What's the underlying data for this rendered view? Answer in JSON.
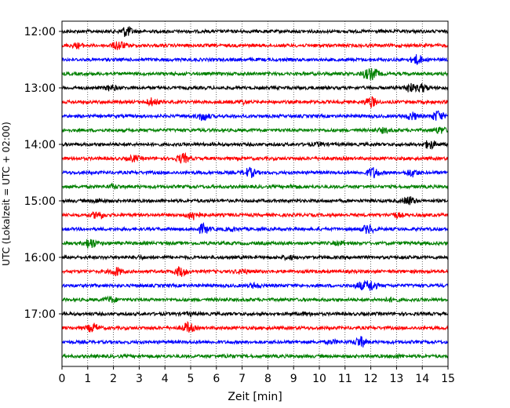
{
  "chart_data": {
    "type": "line",
    "title": "",
    "xlabel": "Zeit  [min]",
    "ylabel": "UTC (Lokalzeit = UTC + 02:00)",
    "xlim": [
      0,
      15
    ],
    "x_ticks": [
      0,
      1,
      2,
      3,
      4,
      5,
      6,
      7,
      8,
      9,
      10,
      11,
      12,
      13,
      14,
      15
    ],
    "y_tick_labels": [
      "12:00",
      "13:00",
      "14:00",
      "15:00",
      "16:00",
      "17:00"
    ],
    "trace_count": 24,
    "traces_per_tick": 4,
    "colors": [
      "#000000",
      "#ff0000",
      "#0000ff",
      "#008000"
    ],
    "grid": "vertical dotted at each minute",
    "bursts": [
      [
        [
          2.5,
          1.0
        ]
      ],
      [
        [
          2.2,
          0.9
        ],
        [
          0.6,
          0.4
        ]
      ],
      [
        [
          13.8,
          0.9
        ]
      ],
      [
        [
          12.1,
          0.9
        ],
        [
          11.8,
          0.6
        ]
      ],
      [
        [
          1.9,
          0.5
        ],
        [
          13.5,
          0.8
        ],
        [
          14.0,
          0.7
        ]
      ],
      [
        [
          3.5,
          0.7
        ],
        [
          12.0,
          1.0
        ],
        [
          7.0,
          0.3
        ]
      ],
      [
        [
          5.5,
          0.8
        ],
        [
          13.6,
          0.7
        ],
        [
          14.6,
          1.0
        ]
      ],
      [
        [
          12.5,
          0.4
        ],
        [
          14.7,
          0.6
        ]
      ],
      [
        [
          14.3,
          0.8
        ],
        [
          10.0,
          0.3
        ]
      ],
      [
        [
          2.8,
          0.5
        ],
        [
          4.7,
          0.9
        ]
      ],
      [
        [
          7.3,
          0.9
        ],
        [
          12.1,
          1.0
        ],
        [
          13.6,
          0.7
        ]
      ],
      [
        [
          2.0,
          0.3
        ],
        [
          9.0,
          0.2
        ]
      ],
      [
        [
          13.5,
          0.8
        ],
        [
          1.4,
          0.3
        ]
      ],
      [
        [
          1.4,
          0.7
        ],
        [
          5.1,
          0.9
        ],
        [
          13.0,
          0.4
        ]
      ],
      [
        [
          5.5,
          0.9
        ],
        [
          11.9,
          0.8
        ],
        [
          6.6,
          0.3
        ]
      ],
      [
        [
          1.1,
          1.0
        ],
        [
          10.8,
          0.3
        ]
      ],
      [
        [
          8.8,
          0.3
        ],
        [
          3.0,
          0.2
        ]
      ],
      [
        [
          2.1,
          0.8
        ],
        [
          4.6,
          0.9
        ],
        [
          7.0,
          0.4
        ]
      ],
      [
        [
          12.0,
          1.0
        ],
        [
          7.5,
          0.4
        ],
        [
          11.6,
          0.6
        ]
      ],
      [
        [
          1.9,
          0.5
        ],
        [
          12.8,
          0.3
        ]
      ],
      [
        [
          9.5,
          0.2
        ],
        [
          5.0,
          0.2
        ]
      ],
      [
        [
          1.2,
          0.8
        ],
        [
          4.9,
          1.0
        ]
      ],
      [
        [
          11.6,
          1.0
        ],
        [
          10.5,
          0.3
        ]
      ],
      [
        [
          6.5,
          0.2
        ],
        [
          13.0,
          0.2
        ]
      ]
    ]
  }
}
